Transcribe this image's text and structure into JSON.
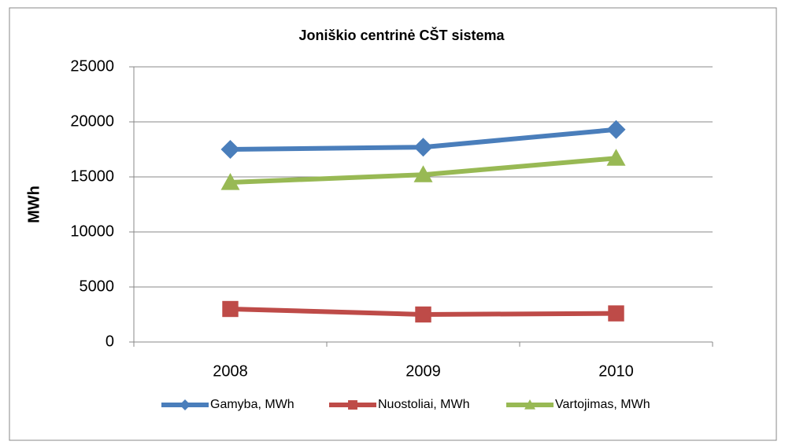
{
  "chart_data": {
    "type": "line",
    "title": "Joniškio centrinė CŠT sistema",
    "y_label": "MWh",
    "categories": [
      "2008",
      "2009",
      "2010"
    ],
    "series": [
      {
        "name": "Gamyba, MWh",
        "color": "#4a7ebb",
        "marker": "diamond",
        "values": [
          17500,
          17700,
          19300
        ]
      },
      {
        "name": "Nuostoliai, MWh",
        "color": "#be4b48",
        "marker": "square",
        "values": [
          3000,
          2500,
          2600
        ]
      },
      {
        "name": "Vartojimas, MWh",
        "color": "#98b954",
        "marker": "triangle",
        "values": [
          14500,
          15200,
          16700
        ]
      }
    ],
    "ylim": [
      0,
      25000
    ],
    "yticks": [
      0,
      5000,
      10000,
      15000,
      20000,
      25000
    ],
    "grid": true,
    "legend": "bottom"
  }
}
